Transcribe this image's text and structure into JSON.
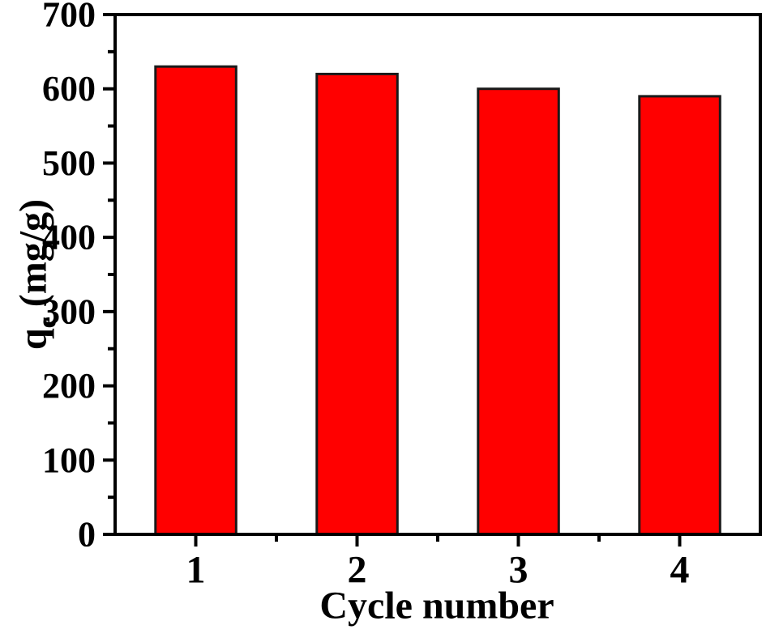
{
  "chart_data": {
    "type": "bar",
    "categories": [
      "1",
      "2",
      "3",
      "4"
    ],
    "values": [
      630,
      620,
      600,
      590
    ],
    "title": "",
    "xlabel": "Cycle number",
    "ylabel": "qe (mg/g)",
    "ylabel_parts": {
      "base": "q",
      "sub": "e",
      "rest": " (mg/g)"
    },
    "ylim": [
      0,
      700
    ],
    "yticks": [
      0,
      100,
      200,
      300,
      400,
      500,
      600,
      700
    ],
    "ytick_step": 100,
    "yminor_step": 50,
    "grid": false,
    "legend": null,
    "bar_color": "#FF0000",
    "bar_border_color": "#1A1A1A",
    "axis_color": "#000000",
    "background_color": "#FFFFFF"
  }
}
